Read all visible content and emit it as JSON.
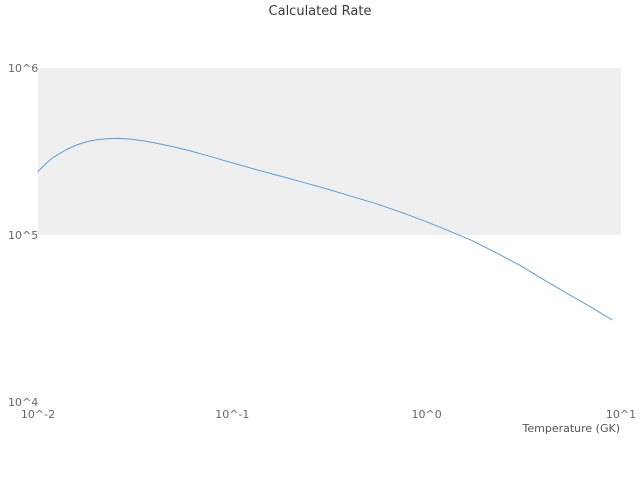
{
  "title": "Calculated Rate",
  "chart_data": {
    "type": "line",
    "title": "Calculated Rate",
    "xlabel": "Temperature (GK)",
    "ylabel": "",
    "x_scale": "log",
    "y_scale": "log",
    "xlim": [
      0.01,
      10
    ],
    "ylim": [
      10000,
      1000000
    ],
    "x_ticks": [
      0.01,
      0.1,
      1,
      10
    ],
    "x_tick_labels": [
      "10^-2",
      "10^-1",
      "10^0",
      "10^1"
    ],
    "y_ticks": [
      10000,
      100000,
      1000000
    ],
    "y_tick_labels": [
      "10^4",
      "10^5",
      "10^6"
    ],
    "grid": "horizontal-band",
    "band": {
      "from": 100000,
      "to": 1000000,
      "color": "#efefef"
    },
    "legend": "none",
    "line_color": "#5b9fd6",
    "series": [
      {
        "name": "calculated-rate",
        "x": [
          0.01,
          0.011,
          0.012,
          0.014,
          0.016,
          0.018,
          0.02,
          0.023,
          0.026,
          0.03,
          0.035,
          0.042,
          0.05,
          0.06,
          0.075,
          0.09,
          0.11,
          0.14,
          0.18,
          0.23,
          0.3,
          0.4,
          0.55,
          0.75,
          1.0,
          1.3,
          1.7,
          2.2,
          3.0,
          4.0,
          5.5,
          7.0,
          9.0
        ],
        "y": [
          240000,
          268000,
          292000,
          325000,
          348000,
          363000,
          372000,
          378000,
          379000,
          375000,
          366000,
          352000,
          337000,
          320000,
          298000,
          280000,
          262000,
          242000,
          224000,
          207000,
          190000,
          172000,
          154000,
          136000,
          120000,
          106000,
          93000,
          80000,
          66000,
          54000,
          43500,
          37000,
          31000
        ]
      }
    ]
  }
}
